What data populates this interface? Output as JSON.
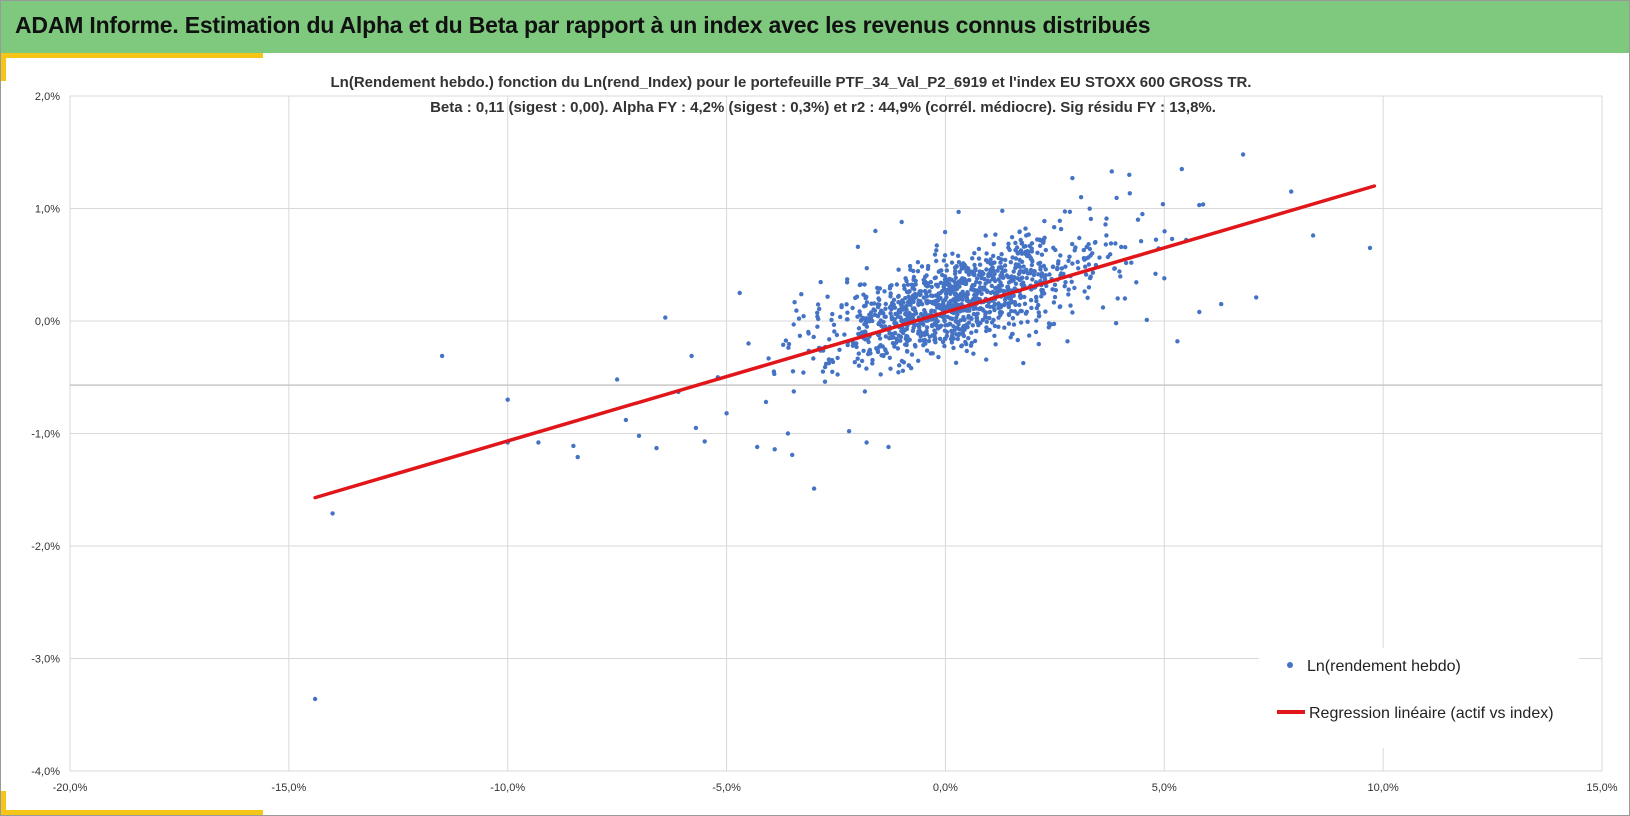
{
  "banner": {
    "title": "ADAM Informe. Estimation du Alpha et du Beta par rapport à un index avec les revenus connus distribués",
    "color": "#7fc97f",
    "accent_color": "#f5c518"
  },
  "chart_data": {
    "type": "scatter",
    "title": "Ln(Rendement hebdo.) fonction du Ln(rend_Index) pour le portefeuille PTF_34_Val_P2_6919 et l'index EU STOXX 600 GROSS TR.",
    "subtitle": "Beta : 0,11 (sigest : 0,00). Alpha FY : 4,2% (sigest : 0,3%) et r2 : 44,9% (corrél. médiocre). Sig résidu FY : 13,8%.",
    "xlabel": "",
    "ylabel": "",
    "xlim": [
      -0.2,
      0.15
    ],
    "ylim": [
      -0.04,
      0.02
    ],
    "x_ticks": [
      -0.2,
      -0.15,
      -0.1,
      -0.05,
      0.0,
      0.05,
      0.1,
      0.15
    ],
    "x_tick_labels": [
      "-20,0%",
      "-15,0%",
      "-10,0%",
      "-5,0%",
      "0,0%",
      "5,0%",
      "10,0%",
      "15,0%"
    ],
    "y_ticks": [
      0.02,
      0.01,
      0.0,
      -0.01,
      -0.02,
      -0.03,
      -0.04
    ],
    "y_tick_labels": [
      "2,0%",
      "1,0%",
      "0,0%",
      "-1,0%",
      "-2,0%",
      "-3,0%",
      "-4,0%"
    ],
    "grid": true,
    "legend_position": "bottom-right",
    "series": [
      {
        "name": "Ln(rendement hebdo)",
        "kind": "scatter",
        "color": "#4472c4",
        "cluster": {
          "n": 1200,
          "x_mean": 0.003,
          "x_sd": 0.016,
          "beta": 0.11,
          "intercept": 0.0015,
          "resid_sd": 0.0022,
          "seed": 42
        },
        "points": [
          [
            -0.144,
            -0.0336
          ],
          [
            -0.14,
            -0.0171
          ],
          [
            -0.115,
            -0.0031
          ],
          [
            -0.1,
            -0.007
          ],
          [
            -0.1,
            -0.0108
          ],
          [
            -0.093,
            -0.0108
          ],
          [
            -0.085,
            -0.0111
          ],
          [
            -0.084,
            -0.0121
          ],
          [
            -0.075,
            -0.0052
          ],
          [
            -0.073,
            -0.0088
          ],
          [
            -0.07,
            -0.0102
          ],
          [
            -0.066,
            -0.0113
          ],
          [
            -0.064,
            0.0003
          ],
          [
            -0.061,
            -0.0063
          ],
          [
            -0.058,
            -0.0031
          ],
          [
            -0.057,
            -0.0095
          ],
          [
            -0.055,
            -0.0107
          ],
          [
            -0.052,
            -0.005
          ],
          [
            -0.05,
            -0.0082
          ],
          [
            -0.047,
            0.0025
          ],
          [
            -0.045,
            -0.002
          ],
          [
            -0.043,
            -0.0112
          ],
          [
            -0.041,
            -0.0072
          ],
          [
            -0.039,
            -0.0114
          ],
          [
            -0.036,
            -0.01
          ],
          [
            -0.035,
            -0.0119
          ],
          [
            -0.03,
            -0.0149
          ],
          [
            -0.028,
            -0.0045
          ],
          [
            -0.022,
            -0.0098
          ],
          [
            -0.02,
            0.0066
          ],
          [
            -0.018,
            -0.0108
          ],
          [
            -0.016,
            0.008
          ],
          [
            -0.013,
            -0.0112
          ],
          [
            -0.01,
            0.0088
          ],
          [
            0.003,
            0.0097
          ],
          [
            0.013,
            0.0098
          ],
          [
            0.029,
            0.0127
          ],
          [
            0.031,
            0.011
          ],
          [
            0.038,
            0.0133
          ],
          [
            0.042,
            0.013
          ],
          [
            0.045,
            0.0095
          ],
          [
            0.05,
            0.0038
          ],
          [
            0.053,
            -0.0018
          ],
          [
            0.054,
            0.0135
          ],
          [
            0.055,
            0.0072
          ],
          [
            0.058,
            0.0103
          ],
          [
            0.058,
            0.0008
          ],
          [
            0.063,
            0.0015
          ],
          [
            0.068,
            0.0148
          ],
          [
            0.071,
            0.0021
          ],
          [
            0.079,
            0.0115
          ],
          [
            0.084,
            0.0076
          ],
          [
            0.097,
            0.0065
          ],
          [
            0.039,
            -0.0002
          ],
          [
            0.046,
            0.0001
          ],
          [
            0.036,
            0.0012
          ],
          [
            0.048,
            0.0042
          ],
          [
            0.041,
            0.002
          ],
          [
            0.044,
            0.009
          ],
          [
            0.033,
            0.0064
          ]
        ]
      },
      {
        "name": "Regression linéaire (actif vs index)",
        "kind": "line",
        "color": "#e0161a",
        "points": [
          [
            -0.144,
            -0.0157
          ],
          [
            0.098,
            0.012
          ]
        ]
      }
    ],
    "extra_hlines": [
      -0.0057
    ],
    "grid_color": "#d9d9d9",
    "hline_color": "#c8c8c8"
  }
}
